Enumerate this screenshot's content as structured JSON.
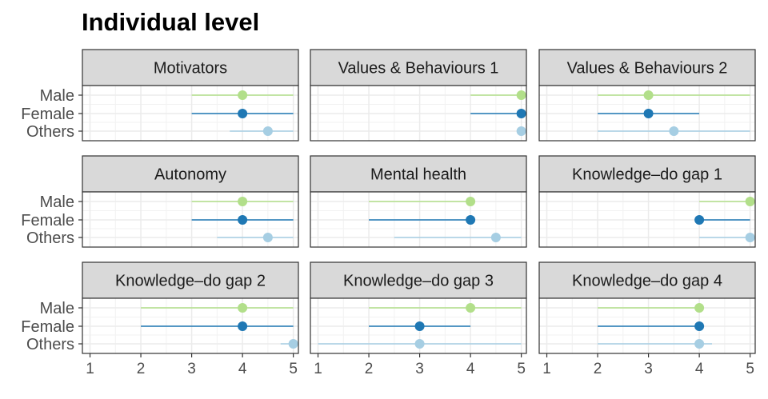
{
  "figure": {
    "title": "Individual level"
  },
  "legend_colors": {
    "Male": "#b2df8a",
    "Female": "#1f78b4",
    "Others": "#a6cee3"
  },
  "chart_data": {
    "type": "scatter",
    "subtype": "dot-and-interval facets",
    "title": "Individual level",
    "groups": [
      "Male",
      "Female",
      "Others"
    ],
    "xlim": [
      0.85,
      5.1
    ],
    "xticks": [
      "1",
      "2",
      "3",
      "4",
      "5"
    ],
    "grid": true,
    "facets": [
      {
        "name": "Motivators",
        "points": [
          {
            "group": "Male",
            "value": 4,
            "low": 3,
            "high": 5
          },
          {
            "group": "Female",
            "value": 4,
            "low": 3,
            "high": 5
          },
          {
            "group": "Others",
            "value": 4.5,
            "low": 3.75,
            "high": 5
          }
        ]
      },
      {
        "name": "Values & Behaviours 1",
        "points": [
          {
            "group": "Male",
            "value": 5,
            "low": 4,
            "high": 5
          },
          {
            "group": "Female",
            "value": 5,
            "low": 4,
            "high": 5
          },
          {
            "group": "Others",
            "value": 5,
            "low": 5,
            "high": 5
          }
        ]
      },
      {
        "name": "Values & Behaviours 2",
        "points": [
          {
            "group": "Male",
            "value": 3,
            "low": 2,
            "high": 5
          },
          {
            "group": "Female",
            "value": 3,
            "low": 2,
            "high": 4
          },
          {
            "group": "Others",
            "value": 3.5,
            "low": 2,
            "high": 5
          }
        ]
      },
      {
        "name": "Autonomy",
        "points": [
          {
            "group": "Male",
            "value": 4,
            "low": 3,
            "high": 5
          },
          {
            "group": "Female",
            "value": 4,
            "low": 3,
            "high": 5
          },
          {
            "group": "Others",
            "value": 4.5,
            "low": 3.5,
            "high": 5
          }
        ]
      },
      {
        "name": "Mental health",
        "points": [
          {
            "group": "Male",
            "value": 4,
            "low": 2,
            "high": 4
          },
          {
            "group": "Female",
            "value": 4,
            "low": 2,
            "high": 4
          },
          {
            "group": "Others",
            "value": 4.5,
            "low": 2.5,
            "high": 5
          }
        ]
      },
      {
        "name": "Knowledge–do gap 1",
        "points": [
          {
            "group": "Male",
            "value": 5,
            "low": 4,
            "high": 5
          },
          {
            "group": "Female",
            "value": 4,
            "low": 4,
            "high": 5
          },
          {
            "group": "Others",
            "value": 5,
            "low": 4,
            "high": 5
          }
        ]
      },
      {
        "name": "Knowledge–do gap 2",
        "points": [
          {
            "group": "Male",
            "value": 4,
            "low": 2,
            "high": 5
          },
          {
            "group": "Female",
            "value": 4,
            "low": 2,
            "high": 5
          },
          {
            "group": "Others",
            "value": 5,
            "low": 4.75,
            "high": 5
          }
        ]
      },
      {
        "name": "Knowledge–do gap 3",
        "points": [
          {
            "group": "Male",
            "value": 4,
            "low": 2,
            "high": 5
          },
          {
            "group": "Female",
            "value": 3,
            "low": 2,
            "high": 4
          },
          {
            "group": "Others",
            "value": 3,
            "low": 1,
            "high": 5
          }
        ]
      },
      {
        "name": "Knowledge–do gap 4",
        "points": [
          {
            "group": "Male",
            "value": 4,
            "low": 2,
            "high": 4
          },
          {
            "group": "Female",
            "value": 4,
            "low": 2,
            "high": 4
          },
          {
            "group": "Others",
            "value": 4,
            "low": 2,
            "high": 4.25
          }
        ]
      }
    ]
  }
}
